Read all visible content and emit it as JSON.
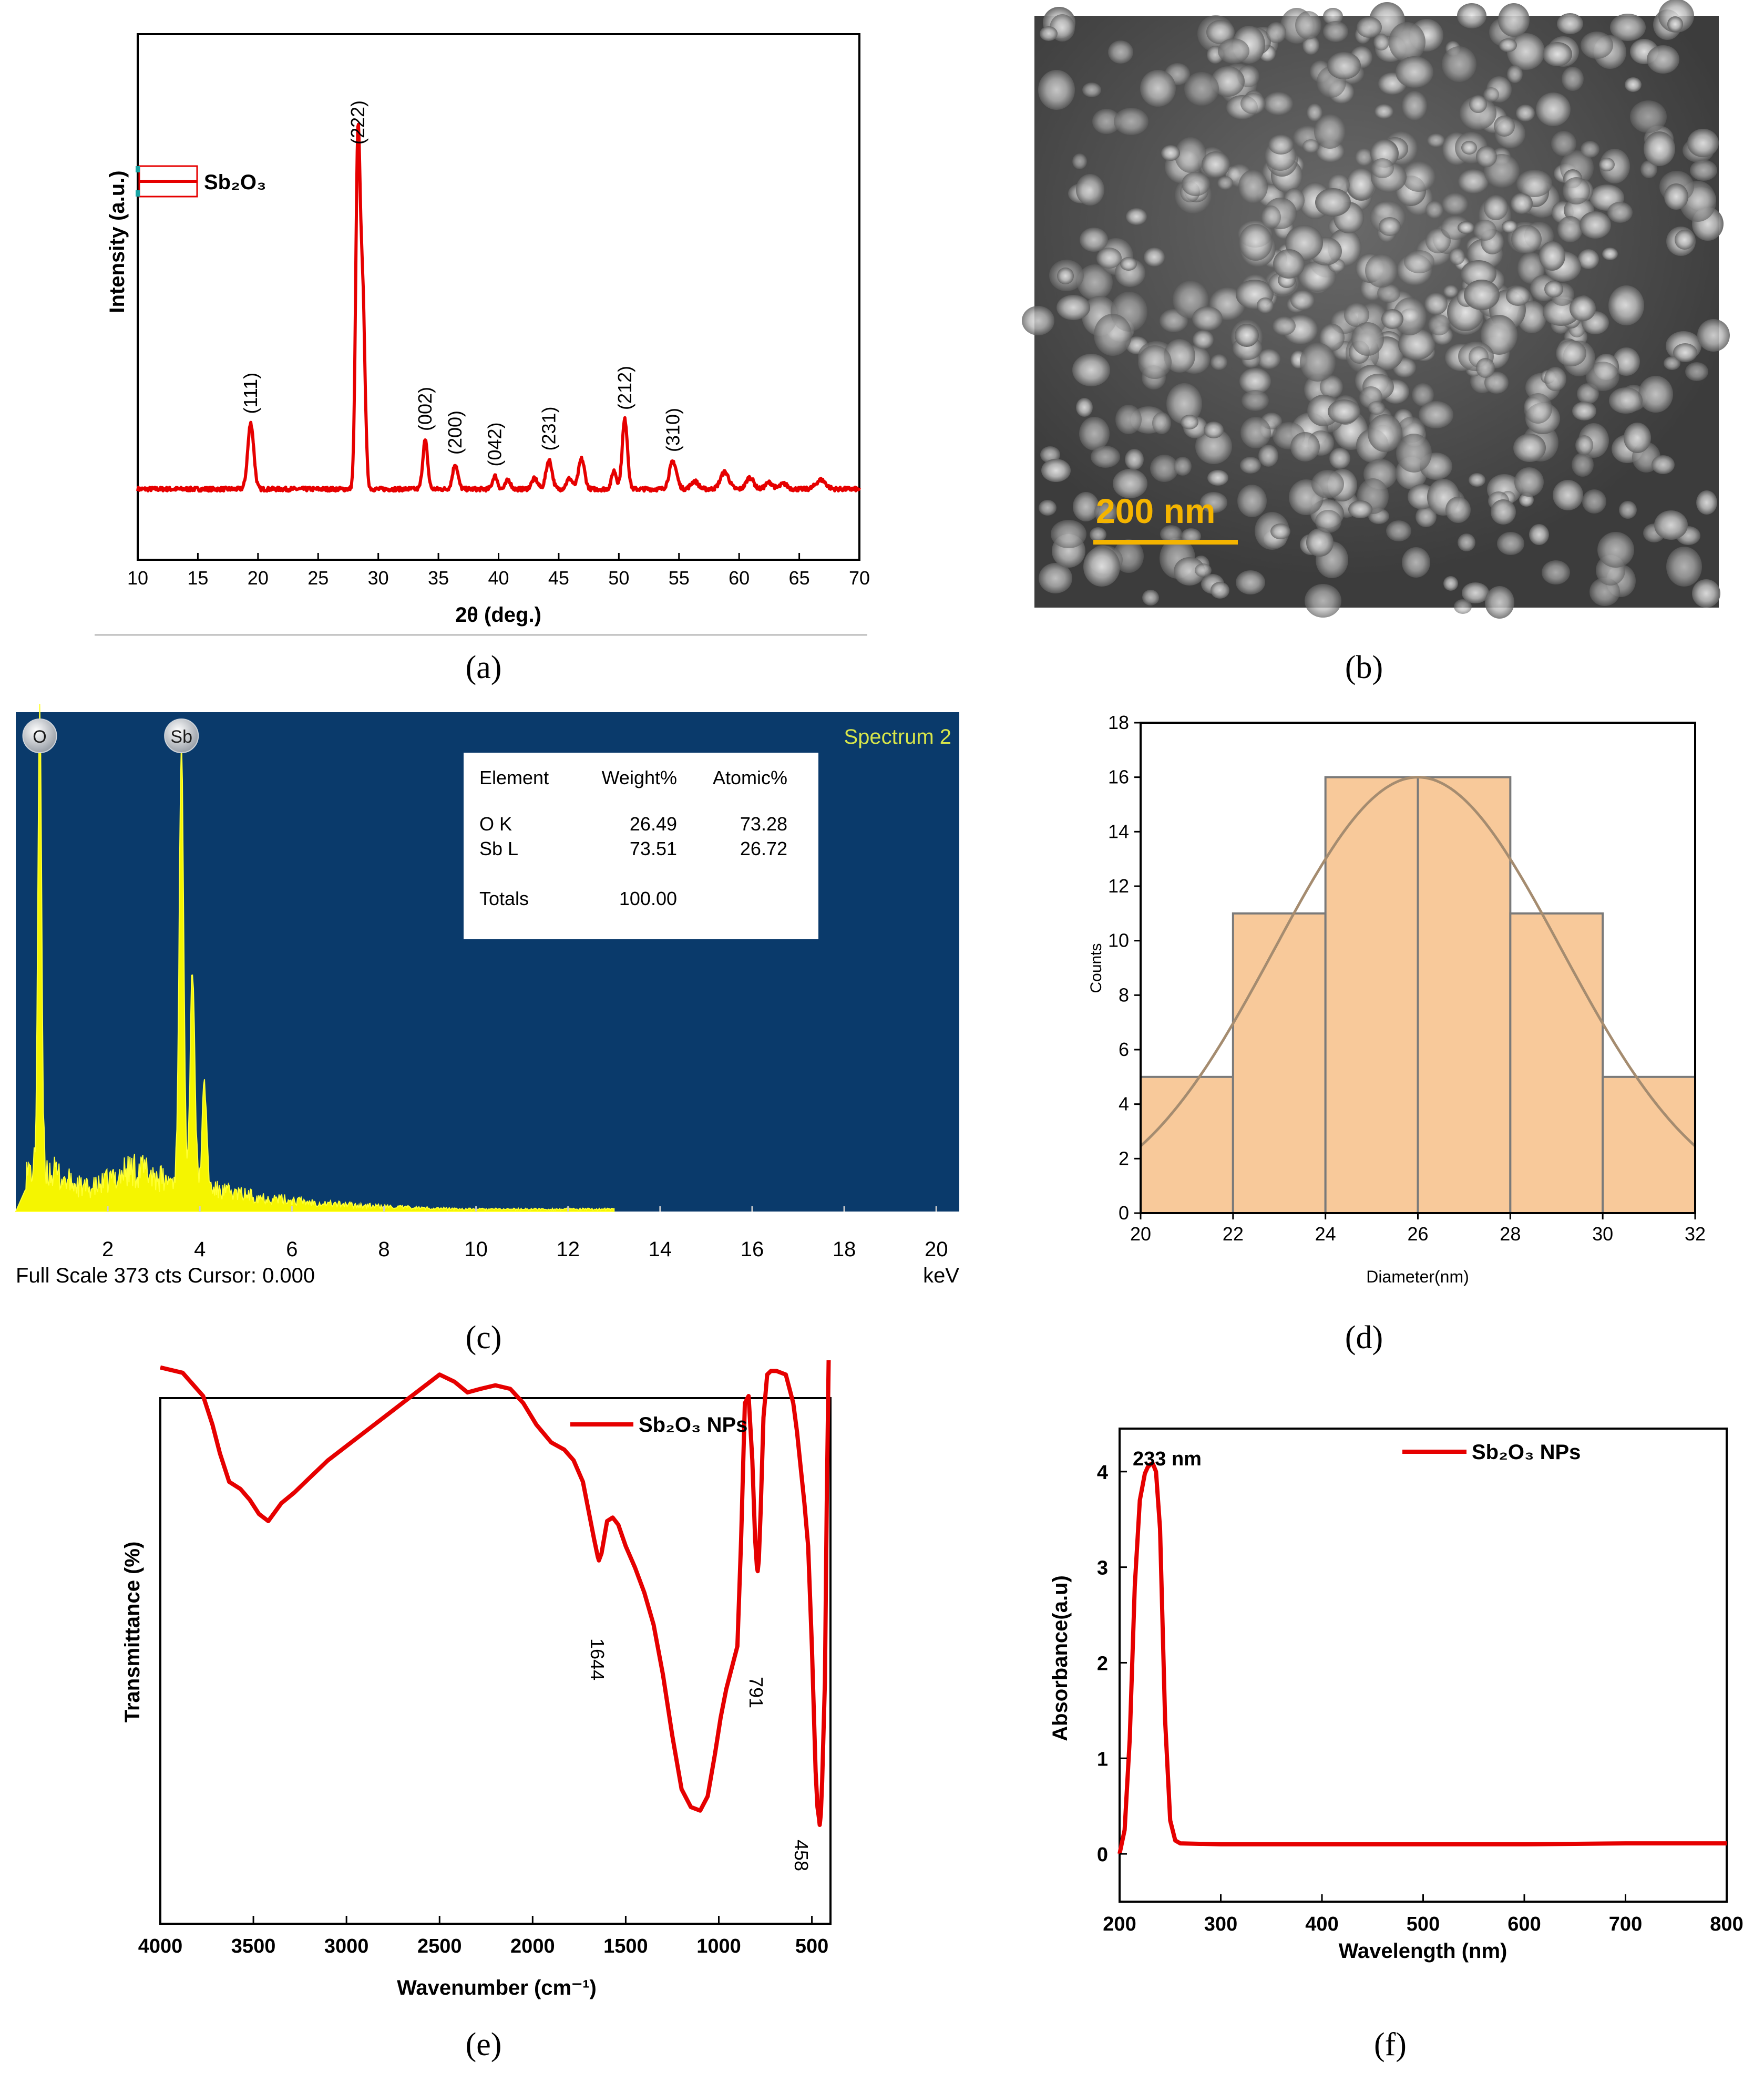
{
  "captions": [
    "(a)",
    "(b)",
    "(c)",
    "(d)",
    "(e)",
    "(f)"
  ],
  "chart_data": [
    {
      "panel": "(a)",
      "type": "line",
      "xlabel": "2θ (deg.)",
      "ylabel": "Intensity (a.u.)",
      "xlim": [
        10,
        70
      ],
      "xticks": [
        "10",
        "15",
        "20",
        "25",
        "30",
        "35",
        "40",
        "45",
        "50",
        "55",
        "60",
        "65",
        "70"
      ],
      "legend": [
        "Sb₂O₃"
      ],
      "legend_position": "top-left",
      "color": "#e60000",
      "baseline": 10,
      "peaks": [
        {
          "x": 19.4,
          "y": 100,
          "w": 0.25
        },
        {
          "x": 28.3,
          "y": 510,
          "w": 0.18
        },
        {
          "x": 28.7,
          "y": 290,
          "w": 0.2
        },
        {
          "x": 33.9,
          "y": 74,
          "w": 0.2
        },
        {
          "x": 36.4,
          "y": 38,
          "w": 0.22
        },
        {
          "x": 39.7,
          "y": 20,
          "w": 0.2
        },
        {
          "x": 40.8,
          "y": 14,
          "w": 0.2
        },
        {
          "x": 43.0,
          "y": 16,
          "w": 0.25
        },
        {
          "x": 44.2,
          "y": 44,
          "w": 0.25
        },
        {
          "x": 45.9,
          "y": 16,
          "w": 0.25
        },
        {
          "x": 46.9,
          "y": 46,
          "w": 0.25
        },
        {
          "x": 49.6,
          "y": 28,
          "w": 0.2
        },
        {
          "x": 50.5,
          "y": 106,
          "w": 0.22
        },
        {
          "x": 54.5,
          "y": 42,
          "w": 0.3
        },
        {
          "x": 56.3,
          "y": 12,
          "w": 0.3
        },
        {
          "x": 58.8,
          "y": 26,
          "w": 0.35
        },
        {
          "x": 60.9,
          "y": 18,
          "w": 0.3
        },
        {
          "x": 62.5,
          "y": 10,
          "w": 0.3
        },
        {
          "x": 63.7,
          "y": 8,
          "w": 0.3
        },
        {
          "x": 66.8,
          "y": 14,
          "w": 0.4
        }
      ],
      "annotations": [
        {
          "text": "(111)",
          "x": 19.4
        },
        {
          "text": "(222)",
          "x": 28.3
        },
        {
          "text": "(002)",
          "x": 33.9
        },
        {
          "text": "(200)",
          "x": 36.4
        },
        {
          "text": "(042)",
          "x": 39.7
        },
        {
          "text": "(231)",
          "x": 44.2
        },
        {
          "text": "(212)",
          "x": 50.5
        },
        {
          "text": "(310)",
          "x": 54.5
        }
      ]
    },
    {
      "panel": "(b)",
      "type": "image",
      "scale_bar": "200 nm"
    },
    {
      "panel": "(c)",
      "type": "line",
      "title": "Spectrum 2",
      "xlabel": "keV",
      "footer": "Full Scale 373 cts Cursor: 0.000",
      "xlim": [
        0,
        20.5
      ],
      "xticks": [
        "2",
        "4",
        "6",
        "8",
        "10",
        "12",
        "14",
        "16",
        "18",
        "20"
      ],
      "color": "#ffff00",
      "background": "#0a3a6b",
      "peak_markers": [
        "O",
        "Sb"
      ],
      "peaks": [
        {
          "x": 0.52,
          "y": 100,
          "w": 0.04
        },
        {
          "x": 3.6,
          "y": 92,
          "w": 0.05
        },
        {
          "x": 3.84,
          "y": 47,
          "w": 0.05
        },
        {
          "x": 4.1,
          "y": 22,
          "w": 0.05
        }
      ],
      "table": {
        "headers": [
          "Element",
          "Weight%",
          "Atomic%"
        ],
        "rows": [
          [
            "O K",
            "26.49",
            "73.28"
          ],
          [
            "Sb L",
            "73.51",
            "26.72"
          ]
        ],
        "totals_label": "Totals",
        "totals_value": "100.00"
      }
    },
    {
      "panel": "(d)",
      "type": "bar",
      "xlabel": "Diameter(nm)",
      "ylabel": "Counts",
      "xlim": [
        20,
        32
      ],
      "ylim": [
        0,
        18
      ],
      "xticks": [
        "20",
        "22",
        "24",
        "26",
        "28",
        "30",
        "32"
      ],
      "yticks": [
        "0",
        "2",
        "4",
        "6",
        "8",
        "10",
        "12",
        "14",
        "16",
        "18"
      ],
      "bins": [
        {
          "x0": 20,
          "x1": 22,
          "count": 5
        },
        {
          "x0": 22,
          "x1": 24,
          "count": 11
        },
        {
          "x0": 24,
          "x1": 26,
          "count": 16
        },
        {
          "x0": 26,
          "x1": 28,
          "count": 16
        },
        {
          "x0": 28,
          "x1": 30,
          "count": 11
        },
        {
          "x0": 30,
          "x1": 32,
          "count": 5
        }
      ],
      "fit": {
        "mean": 26,
        "sigma": 3.1,
        "peak": 16
      },
      "bar_color": "#f8c99a",
      "edge_color": "#7a7a7a"
    },
    {
      "panel": "(e)",
      "type": "line",
      "xlabel": "Wavenumber (cm⁻¹)",
      "ylabel": "Transmittance (%)",
      "xlim": [
        4000,
        400
      ],
      "xticks": [
        "4000",
        "3500",
        "3000",
        "2500",
        "2000",
        "1500",
        "1000",
        "500"
      ],
      "legend": [
        "Sb₂O₃ NPs"
      ],
      "legend_position": "top-right",
      "color": "#e60000",
      "x": [
        4000,
        3880,
        3770,
        3720,
        3680,
        3630,
        3570,
        3520,
        3470,
        3420,
        3350,
        3280,
        3200,
        3100,
        3000,
        2900,
        2800,
        2700,
        2600,
        2500,
        2420,
        2350,
        2280,
        2200,
        2120,
        2050,
        1980,
        1900,
        1830,
        1780,
        1730,
        1700,
        1670,
        1650,
        1644,
        1630,
        1600,
        1570,
        1540,
        1500,
        1450,
        1400,
        1350,
        1300,
        1250,
        1200,
        1150,
        1100,
        1060,
        1020,
        990,
        960,
        930,
        900,
        880,
        860,
        840,
        820,
        805,
        795,
        791,
        785,
        775,
        760,
        740,
        720,
        690,
        640,
        600,
        580,
        560,
        540,
        520,
        500,
        480,
        470,
        462,
        458,
        452,
        445,
        430,
        420,
        410
      ],
      "y": [
        98,
        96.5,
        90,
        82,
        74,
        66,
        64,
        61,
        57,
        55,
        60,
        63,
        67,
        72,
        76,
        80,
        84,
        88,
        92,
        96,
        94,
        91,
        92,
        93,
        92,
        88,
        82,
        77,
        75,
        72,
        66,
        58,
        50,
        45,
        44,
        46,
        55,
        56,
        54,
        48,
        42,
        35,
        26,
        12,
        -5,
        -20,
        -25,
        -26,
        -22,
        -10,
        0,
        8,
        14,
        20,
        50,
        88,
        90,
        72,
        50,
        42,
        41,
        44,
        58,
        84,
        96,
        97,
        97,
        96,
        88,
        80,
        70,
        60,
        48,
        20,
        -15,
        -25,
        -28,
        -30,
        -27,
        -18,
        10,
        60,
        100
      ]
    },
    {
      "panel": "(f)",
      "type": "line",
      "xlabel": "Wavelength (nm)",
      "ylabel": "Absorbance(a.u)",
      "xlim": [
        200,
        800
      ],
      "ylim": [
        -0.5,
        4.45
      ],
      "xticks": [
        "200",
        "300",
        "400",
        "500",
        "600",
        "700",
        "800"
      ],
      "yticks": [
        "0",
        "1",
        "2",
        "3",
        "4"
      ],
      "legend": [
        "Sb₂O₃ NPs"
      ],
      "legend_position": "top-right",
      "annotation": "233 nm",
      "color": "#e60000",
      "x": [
        200,
        205,
        210,
        215,
        220,
        225,
        228,
        231,
        233,
        236,
        240,
        245,
        250,
        255,
        260,
        300,
        400,
        500,
        600,
        700,
        800
      ],
      "y": [
        0,
        0.25,
        1.2,
        2.8,
        3.7,
        3.98,
        4.05,
        4.08,
        4.08,
        4.0,
        3.4,
        1.4,
        0.35,
        0.14,
        0.11,
        0.1,
        0.1,
        0.1,
        0.1,
        0.11,
        0.11
      ]
    }
  ]
}
